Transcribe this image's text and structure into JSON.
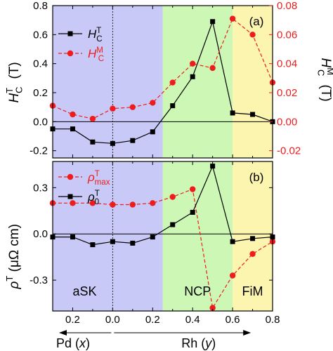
{
  "chart_data": [
    {
      "type": "line",
      "panel_label": "(a)",
      "ylabel_left": "H_C^T (T)",
      "ylabel_right": "H_C^M (T)",
      "ylim_left": [
        -0.25,
        0.8
      ],
      "ylim_right": [
        -0.025,
        0.08
      ],
      "yticks_left": [
        "0.8",
        "0.6",
        "0.4",
        "0.2",
        "0.0",
        "-0.2"
      ],
      "yticks_right": [
        "0.08",
        "0.06",
        "0.04",
        "0.02",
        "0.00",
        "-0.02"
      ],
      "legend": [
        {
          "base": "H",
          "sub": "C",
          "sup": "T"
        },
        {
          "base": "H",
          "sub": "C",
          "sup": "M"
        }
      ],
      "series": [
        {
          "axis": "left",
          "marker": "square",
          "color": "#000000",
          "values": [
            -0.05,
            -0.05,
            -0.14,
            -0.15,
            -0.13,
            -0.07,
            0.11,
            0.31,
            0.69,
            0.06,
            0.05,
            0.0
          ]
        },
        {
          "axis": "right",
          "marker": "circle",
          "color": "#ee1c1c",
          "values": [
            0.011,
            0.005,
            0.002,
            0.009,
            0.01,
            0.013,
            0.027,
            0.04,
            0.037,
            0.071,
            0.06,
            0.027
          ]
        }
      ]
    },
    {
      "type": "line",
      "panel_label": "(b)",
      "ylabel": "ρ^T (μΩ cm)",
      "ylim": [
        -0.5,
        0.47
      ],
      "yticks": [
        "0.3",
        "0.0",
        "-0.3"
      ],
      "legend": [
        {
          "base": "ρ",
          "sub": "max",
          "sup": "T"
        },
        {
          "base": "ρ",
          "sub": "0",
          "sup": "T"
        }
      ],
      "series": [
        {
          "marker": "circle",
          "color": "#ee1c1c",
          "values": [
            0.2,
            0.2,
            0.2,
            0.19,
            0.19,
            0.2,
            0.24,
            0.29,
            -0.48,
            -0.27,
            -0.13,
            -0.05
          ]
        },
        {
          "marker": "square",
          "color": "#000000",
          "values": [
            -0.02,
            -0.02,
            -0.07,
            -0.05,
            -0.06,
            -0.02,
            0.06,
            0.14,
            0.44,
            -0.05,
            -0.03,
            -0.02
          ]
        }
      ],
      "regions": [
        "aSK",
        "NCP",
        "FiM"
      ]
    }
  ],
  "shared_x": {
    "x": [
      -0.3,
      -0.2,
      -0.1,
      0.0,
      0.1,
      0.2,
      0.3,
      0.4,
      0.5,
      0.6,
      0.7,
      0.8
    ],
    "xlim": [
      -0.3,
      0.8
    ],
    "tick_labels": [
      {
        "value": -0.2,
        "label": "0.2"
      },
      {
        "value": 0.0,
        "label": "0.0"
      },
      {
        "value": 0.2,
        "label": "0.2"
      },
      {
        "value": 0.4,
        "label": "0.4"
      },
      {
        "value": 0.6,
        "label": "0.6"
      },
      {
        "value": 0.8,
        "label": "0.8"
      }
    ],
    "label_left": "Pd (x)",
    "label_right": "Rh (y)",
    "region_bounds": [
      {
        "name": "aSK",
        "from": -0.3,
        "to": 0.25,
        "color": "#c9c9f7"
      },
      {
        "name": "NCP",
        "from": 0.25,
        "to": 0.6,
        "color": "#ccf7b4"
      },
      {
        "name": "FiM",
        "from": 0.6,
        "to": 0.8,
        "color": "#fbf5b0"
      }
    ]
  }
}
